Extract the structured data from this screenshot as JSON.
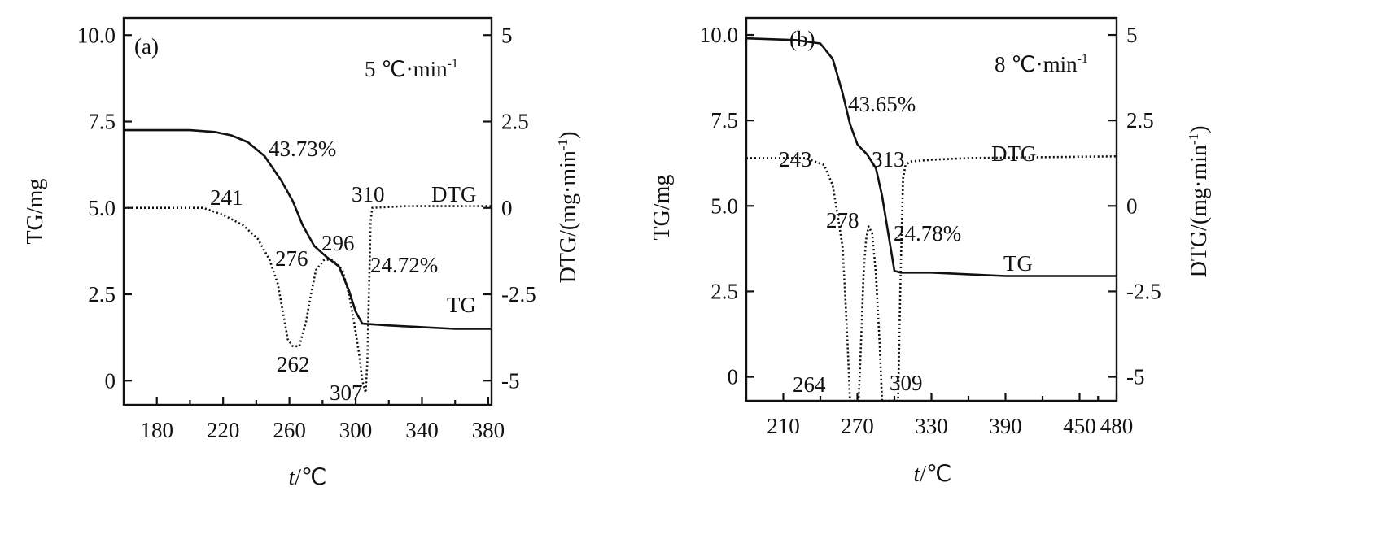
{
  "chart_data": [
    {
      "type": "line",
      "panel_label": "(a)",
      "rate_label": "5 ℃·min",
      "rate_sup": "-1",
      "xlabel_italic": "t",
      "xlabel_rest": "/℃",
      "ylabel_left": "TG/mg",
      "ylabel_right": "DTG/(mg·min",
      "ylabel_right_sup": "-1",
      "ylabel_right_end": ")",
      "xlim": [
        160,
        382
      ],
      "ylim_left": [
        -0.7,
        10.5
      ],
      "ylim_right": [
        -5.7,
        5.5
      ],
      "x_ticks": [
        "180",
        "220",
        "260",
        "300",
        "340",
        "380"
      ],
      "x_tick_values": [
        180,
        220,
        260,
        300,
        340,
        380
      ],
      "y_left_ticks": [
        "0",
        "2.5",
        "5.0",
        "7.5",
        "10.0"
      ],
      "y_left_tick_values": [
        0,
        2.5,
        5.0,
        7.5,
        10.0
      ],
      "y_right_ticks": [
        "-5",
        "-2.5",
        "0",
        "2.5",
        "5"
      ],
      "y_right_tick_values": [
        -5,
        -2.5,
        0,
        2.5,
        5
      ],
      "series": [
        {
          "name": "TG",
          "axis": "left",
          "style": "solid",
          "points": [
            [
              160,
              7.25
            ],
            [
              200,
              7.25
            ],
            [
              215,
              7.2
            ],
            [
              225,
              7.1
            ],
            [
              235,
              6.9
            ],
            [
              245,
              6.5
            ],
            [
              255,
              5.8
            ],
            [
              262,
              5.2
            ],
            [
              268,
              4.5
            ],
            [
              275,
              3.9
            ],
            [
              282,
              3.6
            ],
            [
              290,
              3.3
            ],
            [
              296,
              2.6
            ],
            [
              300,
              2.0
            ],
            [
              304,
              1.65
            ],
            [
              320,
              1.6
            ],
            [
              340,
              1.55
            ],
            [
              360,
              1.5
            ],
            [
              382,
              1.5
            ]
          ]
        },
        {
          "name": "DTG",
          "axis": "right",
          "style": "dotted",
          "points": [
            [
              160,
              0
            ],
            [
              208,
              0
            ],
            [
              220,
              -0.2
            ],
            [
              232,
              -0.5
            ],
            [
              241,
              -0.9
            ],
            [
              248,
              -1.5
            ],
            [
              253,
              -2.2
            ],
            [
              256,
              -3.0
            ],
            [
              259,
              -3.8
            ],
            [
              262,
              -4.0
            ],
            [
              266,
              -4.0
            ],
            [
              270,
              -3.3
            ],
            [
              273,
              -2.5
            ],
            [
              276,
              -1.8
            ],
            [
              281,
              -1.5
            ],
            [
              286,
              -1.5
            ],
            [
              292,
              -1.8
            ],
            [
              296,
              -2.5
            ],
            [
              299,
              -3.3
            ],
            [
              302,
              -4.2
            ],
            [
              304,
              -5.0
            ],
            [
              306,
              -5.35
            ],
            [
              307,
              -4.5
            ],
            [
              308,
              -2.5
            ],
            [
              309,
              -0.4
            ],
            [
              310,
              0
            ],
            [
              330,
              0.05
            ],
            [
              382,
              0.05
            ]
          ]
        }
      ],
      "annotations": {
        "tg_loss_1": "43.73%",
        "tg_loss_2": "24.72%",
        "dtg_241": "241",
        "dtg_276": "276",
        "dtg_296": "296",
        "dtg_262": "262",
        "dtg_307": "307",
        "dtg_310": "310",
        "legend_dtg": "DTG",
        "legend_tg": "TG"
      }
    },
    {
      "type": "line",
      "panel_label": "(b)",
      "rate_label": "8 ℃·min",
      "rate_sup": "-1",
      "xlabel_italic": "t",
      "xlabel_rest": "/℃",
      "ylabel_left": "TG/mg",
      "ylabel_right": "DTG/(mg·min",
      "ylabel_right_sup": "-1",
      "ylabel_right_end": ")",
      "xlim": [
        180,
        480
      ],
      "ylim_left": [
        -0.7,
        10.5
      ],
      "ylim_right": [
        -5.7,
        5.5
      ],
      "x_ticks": [
        "210",
        "270",
        "330",
        "390",
        "450",
        "480"
      ],
      "x_tick_values": [
        210,
        270,
        330,
        390,
        450,
        480
      ],
      "y_left_ticks": [
        "0",
        "2.5",
        "5.0",
        "7.5",
        "10.0"
      ],
      "y_left_tick_values": [
        0,
        2.5,
        5.0,
        7.5,
        10.0
      ],
      "y_right_ticks": [
        "-5",
        "-2.5",
        "0",
        "2.5",
        "5"
      ],
      "y_right_tick_values": [
        -5,
        -2.5,
        0,
        2.5,
        5
      ],
      "series": [
        {
          "name": "TG",
          "axis": "left",
          "style": "solid",
          "points": [
            [
              180,
              9.9
            ],
            [
              220,
              9.85
            ],
            [
              240,
              9.75
            ],
            [
              250,
              9.3
            ],
            [
              258,
              8.3
            ],
            [
              264,
              7.4
            ],
            [
              270,
              6.8
            ],
            [
              278,
              6.5
            ],
            [
              285,
              6.1
            ],
            [
              290,
              5.3
            ],
            [
              295,
              4.2
            ],
            [
              300,
              3.1
            ],
            [
              305,
              3.05
            ],
            [
              330,
              3.05
            ],
            [
              360,
              3.0
            ],
            [
              390,
              2.95
            ],
            [
              480,
              2.95
            ]
          ]
        },
        {
          "name": "DTG",
          "axis": "right",
          "style": "dotted",
          "points": [
            [
              180,
              1.4
            ],
            [
              228,
              1.4
            ],
            [
              243,
              1.2
            ],
            [
              250,
              0.6
            ],
            [
              255,
              -0.5
            ],
            [
              258,
              -1.2
            ],
            [
              260,
              -2.5
            ],
            [
              262,
              -4.0
            ],
            [
              264,
              -5.7
            ],
            [
              271,
              -5.7
            ],
            [
              273,
              -4.0
            ],
            [
              275,
              -2.0
            ],
            [
              277,
              -1.0
            ],
            [
              279,
              -0.6
            ],
            [
              282,
              -0.8
            ],
            [
              285,
              -2.0
            ],
            [
              288,
              -4.0
            ],
            [
              290,
              -5.7
            ],
            [
              303,
              -5.7
            ],
            [
              305,
              -2.0
            ],
            [
              307,
              0.8
            ],
            [
              309,
              1.2
            ],
            [
              313,
              1.3
            ],
            [
              330,
              1.35
            ],
            [
              360,
              1.4
            ],
            [
              480,
              1.45
            ]
          ]
        }
      ],
      "annotations": {
        "tg_loss_1": "43.65%",
        "tg_loss_2": "24.78%",
        "dtg_243": "243",
        "dtg_278": "278",
        "dtg_313": "313",
        "dtg_264": "264",
        "dtg_309": "309",
        "legend_dtg": "DTG",
        "legend_tg": "TG"
      }
    }
  ]
}
